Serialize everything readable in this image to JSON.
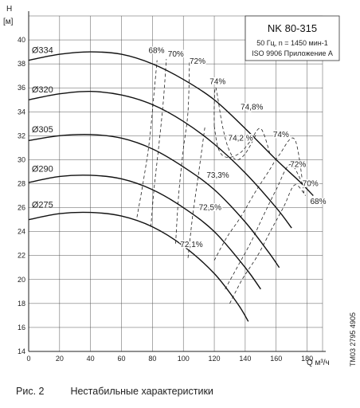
{
  "caption": {
    "figure": "Рис. 2",
    "text": "Нестабильные характеристики"
  },
  "side_code": "TM03 2795 4905",
  "chart_data": {
    "type": "line",
    "info_box": {
      "model": "NK 80-315",
      "conditions": "50 Гц, n = 1450 мин-1",
      "standard": "ISO 9906 Приложение A"
    },
    "ylabel_top": "H",
    "ylabel_unit": "[м]",
    "xlabel": "Q м³/ч",
    "xlim": [
      0,
      190
    ],
    "ylim": [
      14,
      42
    ],
    "x_ticks": [
      0,
      20,
      40,
      60,
      80,
      100,
      120,
      140,
      160,
      180
    ],
    "y_ticks": [
      14,
      16,
      18,
      20,
      22,
      24,
      26,
      28,
      30,
      32,
      34,
      36,
      38,
      40
    ],
    "grid": true,
    "series": [
      {
        "name": "Ø334",
        "label_xy": [
          2,
          38.9
        ],
        "x": [
          0,
          20,
          40,
          60,
          80,
          100,
          120,
          140,
          160,
          175,
          184
        ],
        "y": [
          38.3,
          38.8,
          39.0,
          38.8,
          38.0,
          36.7,
          35.0,
          32.6,
          30.0,
          28.2,
          27.0
        ]
      },
      {
        "name": "Ø320",
        "label_xy": [
          2,
          35.6
        ],
        "x": [
          0,
          20,
          40,
          60,
          80,
          100,
          120,
          140,
          160,
          170
        ],
        "y": [
          35.0,
          35.5,
          35.7,
          35.4,
          34.6,
          33.2,
          31.3,
          28.9,
          26.0,
          24.3
        ]
      },
      {
        "name": "Ø305",
        "label_xy": [
          2,
          32.3
        ],
        "x": [
          0,
          20,
          40,
          60,
          80,
          100,
          120,
          140,
          155,
          162
        ],
        "y": [
          31.6,
          32.0,
          32.1,
          31.8,
          30.9,
          29.4,
          27.5,
          24.8,
          22.3,
          21.0
        ]
      },
      {
        "name": "Ø290",
        "label_xy": [
          2,
          29.0
        ],
        "x": [
          0,
          20,
          40,
          60,
          80,
          100,
          120,
          140,
          150
        ],
        "y": [
          28.1,
          28.6,
          28.7,
          28.4,
          27.5,
          26.0,
          24.0,
          21.0,
          19.2
        ]
      },
      {
        "name": "Ø275",
        "label_xy": [
          2,
          26.0
        ],
        "x": [
          0,
          20,
          40,
          60,
          80,
          100,
          120,
          135,
          142
        ],
        "y": [
          25.0,
          25.5,
          25.6,
          25.3,
          24.4,
          22.8,
          20.5,
          18.0,
          16.5
        ]
      }
    ],
    "efficiency_lines": [
      {
        "x": [
          70,
          74,
          78,
          81,
          83
        ],
        "y": [
          25.2,
          28.1,
          31.5,
          35.5,
          38.3
        ]
      },
      {
        "x": [
          79,
          81,
          84,
          87,
          89
        ],
        "y": [
          24.4,
          27.5,
          31.0,
          34.8,
          38.4
        ]
      },
      {
        "x": [
          95,
          97,
          100,
          103,
          104
        ],
        "y": [
          23.0,
          27.1,
          30.9,
          34.0,
          38.3
        ]
      },
      {
        "x": [
          103,
          106,
          110,
          114
        ],
        "y": [
          21.8,
          25.3,
          29.0,
          32.8
        ]
      },
      {
        "x": [
          120,
          120,
          121,
          125,
          129,
          134,
          140,
          147
        ],
        "y": [
          32.8,
          34.5,
          36.0,
          33.0,
          31.0,
          30.0,
          30.5,
          32.1
        ]
      },
      {
        "x": [
          120,
          122,
          125,
          130,
          137,
          143,
          150,
          156
        ],
        "y": [
          32.8,
          31.2,
          30.4,
          30.2,
          30.6,
          31.5,
          32.6,
          30.5
        ]
      },
      {
        "x": [
          120,
          128,
          137,
          146,
          155,
          162,
          172,
          178
        ],
        "y": [
          21.6,
          23.5,
          25.2,
          27.2,
          29.0,
          30.4,
          31.7,
          27.2
        ]
      },
      {
        "x": [
          127,
          136,
          144,
          152,
          160,
          169,
          177
        ],
        "y": [
          19.2,
          21.3,
          23.2,
          25.4,
          27.5,
          29.6,
          28.0
        ]
      },
      {
        "x": [
          130,
          138,
          148,
          157,
          165,
          172,
          179
        ],
        "y": [
          18.0,
          20.0,
          22.0,
          24.2,
          26.1,
          27.9,
          27.0
        ]
      }
    ],
    "annotations": [
      {
        "text": "68%",
        "x": 77.5,
        "y": 38.9
      },
      {
        "text": "70%",
        "x": 90,
        "y": 38.6
      },
      {
        "text": "72%",
        "x": 104,
        "y": 38.0
      },
      {
        "text": "74%",
        "x": 117,
        "y": 36.3
      },
      {
        "text": "74,8%",
        "x": 137,
        "y": 34.2
      },
      {
        "text": "74,2 %",
        "x": 129,
        "y": 31.6
      },
      {
        "text": "74%",
        "x": 158,
        "y": 31.9
      },
      {
        "text": "72%",
        "x": 169,
        "y": 29.4
      },
      {
        "text": "70%",
        "x": 177,
        "y": 27.8
      },
      {
        "text": "68%",
        "x": 182,
        "y": 26.3
      },
      {
        "text": "73,3%",
        "x": 115,
        "y": 28.5
      },
      {
        "text": "72,5%",
        "x": 110,
        "y": 25.8
      },
      {
        "text": "72,1%",
        "x": 98,
        "y": 22.7
      }
    ]
  }
}
